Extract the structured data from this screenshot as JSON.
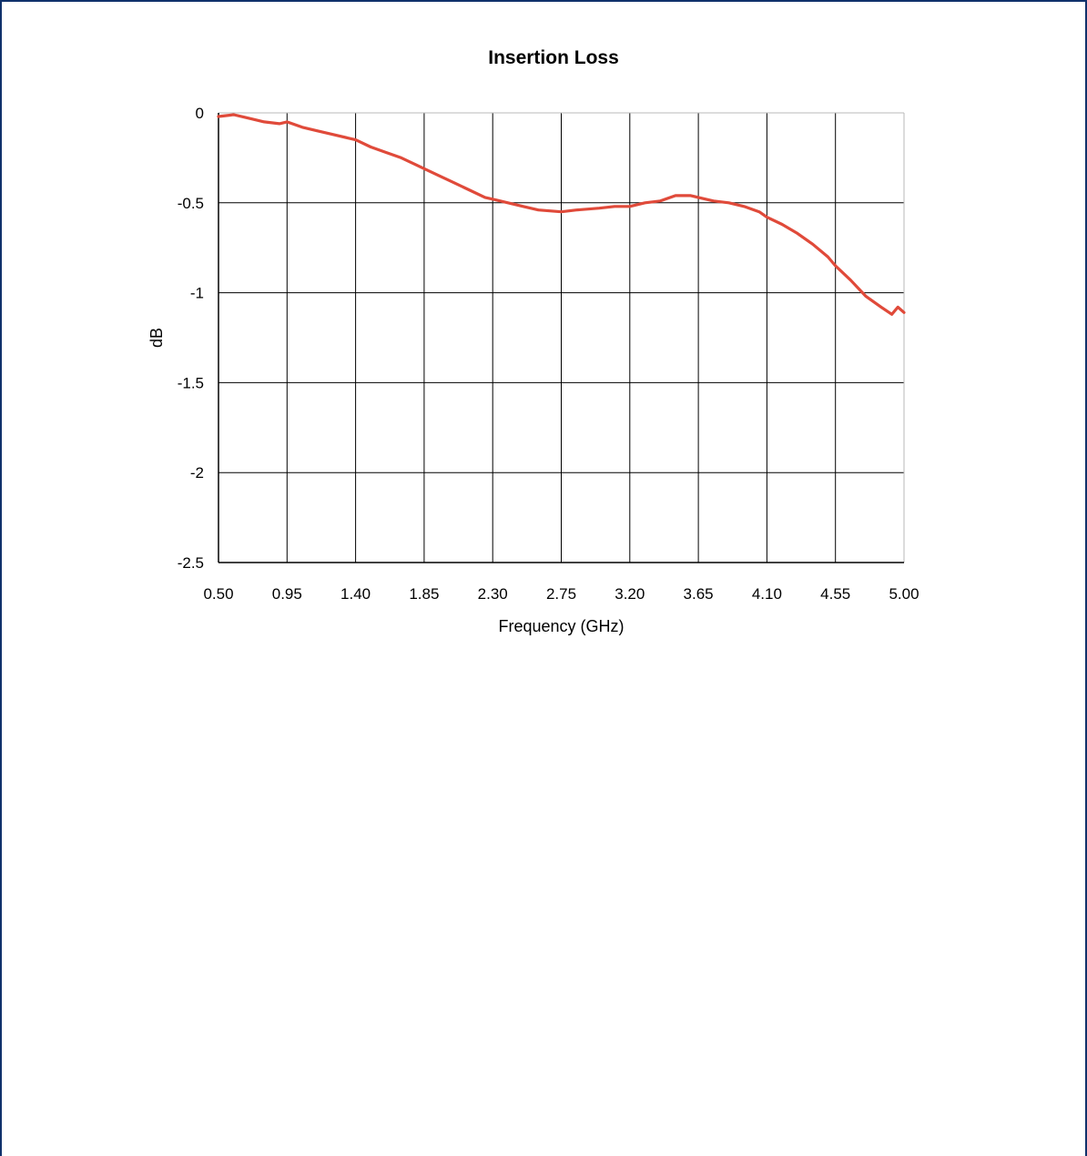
{
  "chart_data": {
    "type": "line",
    "title": "Insertion Loss",
    "xlabel": "Frequency (GHz)",
    "ylabel": "dB",
    "xlim": [
      0.5,
      5.0
    ],
    "ylim": [
      -2.5,
      0
    ],
    "x_ticks": [
      "0.50",
      "0.95",
      "1.40",
      "1.85",
      "2.30",
      "2.75",
      "3.20",
      "3.65",
      "4.10",
      "4.55",
      "5.00"
    ],
    "y_ticks": [
      "0",
      "-0.5",
      "-1",
      "-1.5",
      "-2",
      "-2.5"
    ],
    "grid": true,
    "colors": {
      "line": "#e04a3a",
      "grid": "#000000",
      "frame": "#10316b"
    },
    "series": [
      {
        "x": [
          0.5,
          0.6,
          0.7,
          0.8,
          0.9,
          0.95,
          1.05,
          1.15,
          1.25,
          1.4,
          1.5,
          1.6,
          1.7,
          1.8,
          1.85,
          1.95,
          2.05,
          2.15,
          2.25,
          2.3,
          2.4,
          2.5,
          2.6,
          2.75,
          2.85,
          3.0,
          3.1,
          3.2,
          3.3,
          3.4,
          3.5,
          3.6,
          3.65,
          3.75,
          3.85,
          3.95,
          4.05,
          4.1,
          4.2,
          4.3,
          4.4,
          4.5,
          4.55,
          4.65,
          4.75,
          4.85,
          4.92,
          4.96,
          5.0
        ],
        "values": [
          -0.02,
          -0.01,
          -0.03,
          -0.05,
          -0.06,
          -0.05,
          -0.08,
          -0.1,
          -0.12,
          -0.15,
          -0.19,
          -0.22,
          -0.25,
          -0.29,
          -0.31,
          -0.35,
          -0.39,
          -0.43,
          -0.47,
          -0.48,
          -0.5,
          -0.52,
          -0.54,
          -0.55,
          -0.54,
          -0.53,
          -0.52,
          -0.52,
          -0.5,
          -0.49,
          -0.46,
          -0.46,
          -0.47,
          -0.49,
          -0.5,
          -0.52,
          -0.55,
          -0.58,
          -0.62,
          -0.67,
          -0.73,
          -0.8,
          -0.85,
          -0.93,
          -1.02,
          -1.08,
          -1.12,
          -1.08,
          -1.11
        ]
      }
    ]
  }
}
